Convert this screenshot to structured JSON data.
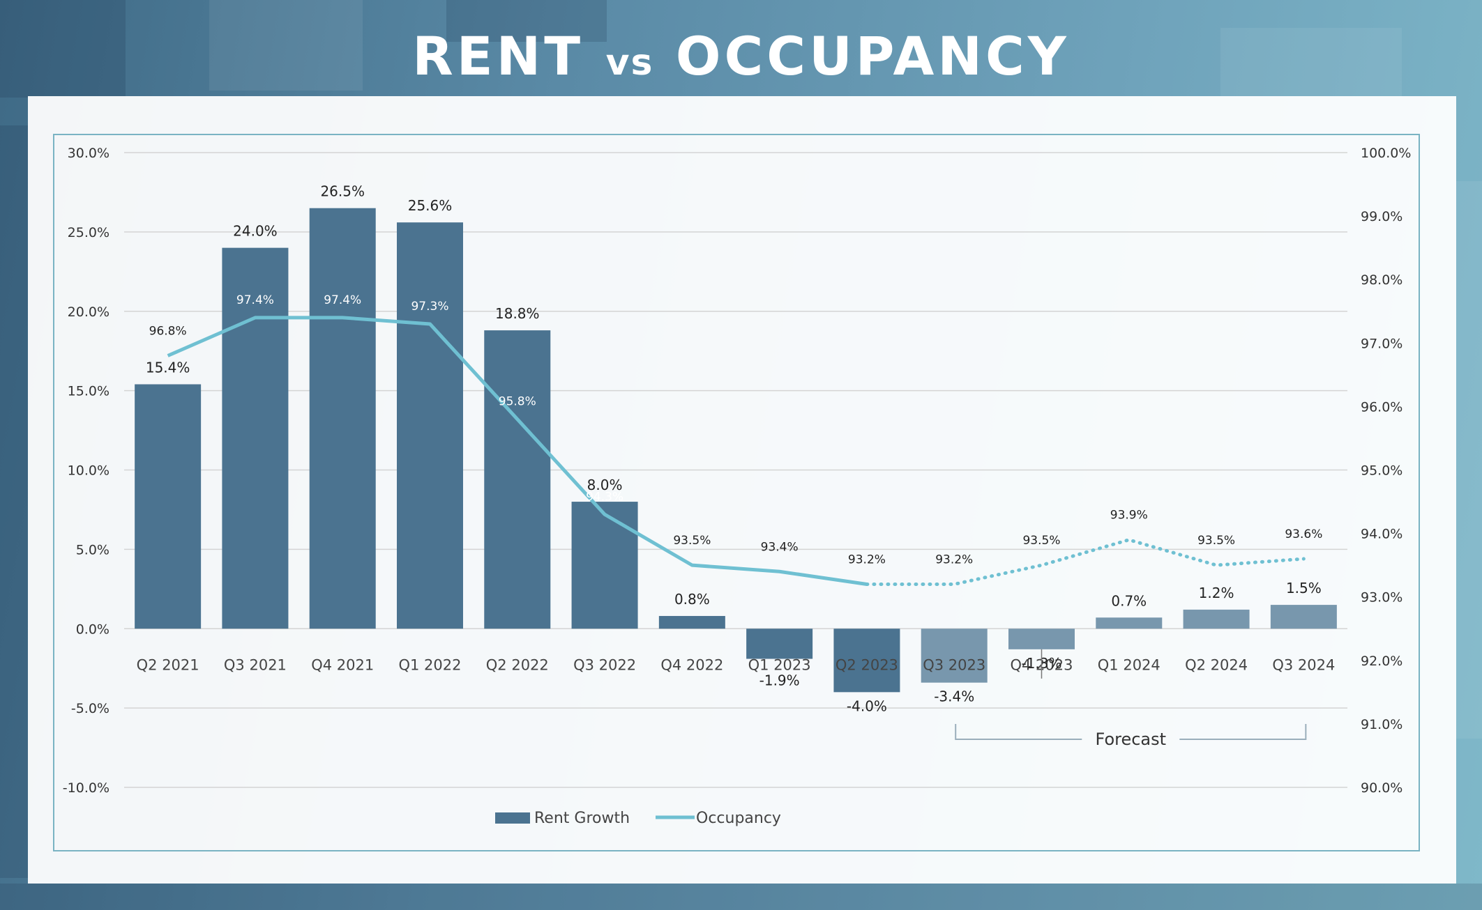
{
  "title": {
    "main": "RENT",
    "vs": "vs",
    "second": "OCCUPANCY"
  },
  "colors": {
    "bar_actual": "#4b7390",
    "bar_forecast": "#7897ad",
    "line": "#6fc0d2",
    "grid": "#d4d4d4"
  },
  "chart_data": {
    "type": "bar",
    "categories": [
      "Q2 2021",
      "Q3 2021",
      "Q4 2021",
      "Q1 2022",
      "Q2 2022",
      "Q3 2022",
      "Q4 2022",
      "Q1 2023",
      "Q2 2023",
      "Q3 2023",
      "Q4 2023",
      "Q1 2024",
      "Q2 2024",
      "Q3 2024"
    ],
    "series": [
      {
        "name": "Rent Growth",
        "type": "bar",
        "axis": "left",
        "values": [
          15.4,
          24.0,
          26.5,
          25.6,
          18.8,
          8.0,
          0.8,
          -1.9,
          -4.0,
          -3.4,
          -1.3,
          0.7,
          1.2,
          1.5
        ],
        "labels": [
          "15.4%",
          "24.0%",
          "26.5%",
          "25.6%",
          "18.8%",
          "8.0%",
          "0.8%",
          "-1.9%",
          "-4.0%",
          "-3.4%",
          "-1.3%",
          "0.7%",
          "1.2%",
          "1.5%"
        ],
        "forecast_from_index": 9
      },
      {
        "name": "Occupancy",
        "type": "line",
        "axis": "right",
        "values": [
          96.8,
          97.4,
          97.4,
          97.3,
          95.8,
          94.3,
          93.5,
          93.4,
          93.2,
          93.2,
          93.5,
          93.9,
          93.5,
          93.6
        ],
        "labels": [
          "96.8%",
          "97.4%",
          "97.4%",
          "97.3%",
          "95.8%",
          "94.3%",
          "93.5%",
          "93.4%",
          "93.2%",
          "93.2%",
          "93.5%",
          "93.9%",
          "93.5%",
          "93.6%"
        ],
        "dotted_from_index": 8
      }
    ],
    "y_left": {
      "ylim": [
        -10,
        30
      ],
      "ticks": [
        "-10.0%",
        "-5.0%",
        "0.0%",
        "5.0%",
        "10.0%",
        "15.0%",
        "20.0%",
        "25.0%",
        "30.0%"
      ]
    },
    "y_right": {
      "ylim": [
        90,
        100
      ],
      "ticks": [
        "90.0%",
        "91.0%",
        "92.0%",
        "93.0%",
        "94.0%",
        "95.0%",
        "96.0%",
        "97.0%",
        "98.0%",
        "99.0%",
        "100.0%"
      ]
    },
    "grid": true,
    "legend": {
      "placement": "bottom",
      "entries": [
        "Rent Growth",
        "Occupancy"
      ]
    },
    "annotation": {
      "text": "Forecast",
      "from_index": 9,
      "to_index": 13
    }
  }
}
